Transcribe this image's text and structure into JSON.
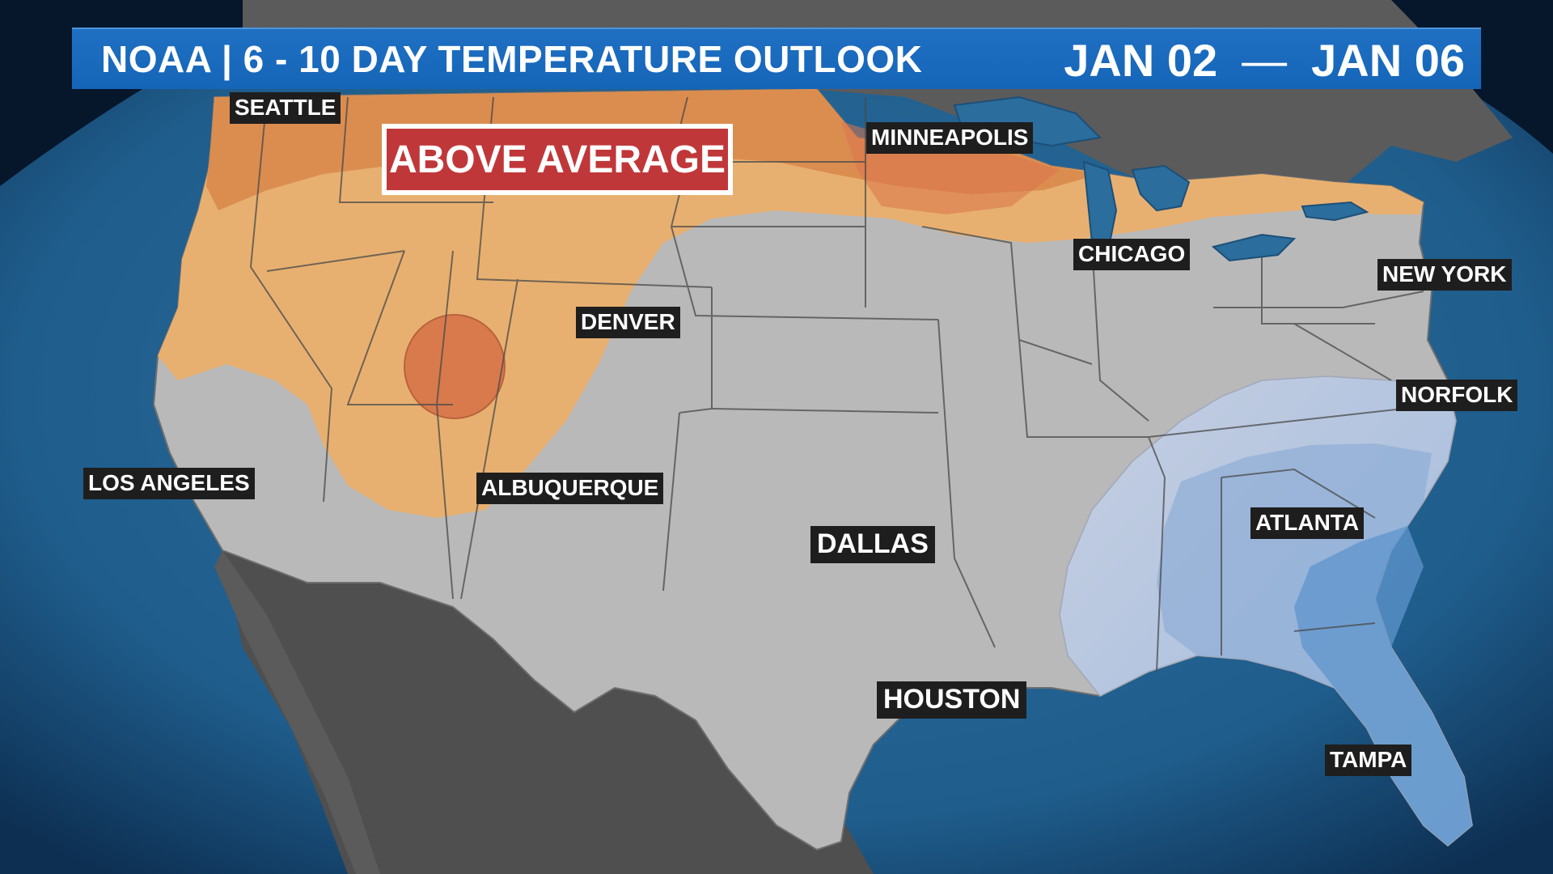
{
  "header": {
    "title": "NOAA | 6 - 10 DAY TEMPERATURE OUTLOOK",
    "date_start": "JAN 02",
    "date_separator": "—",
    "date_end": "JAN 06"
  },
  "legend": {
    "above_label": "ABOVE AVERAGE"
  },
  "cities": {
    "seattle": "SEATTLE",
    "minneapolis": "MINNEAPOLIS",
    "chicago": "CHICAGO",
    "new_york": "NEW YORK",
    "denver": "DENVER",
    "norfolk": "NORFOLK",
    "los_angeles": "LOS ANGELES",
    "albuquerque": "ALBUQUERQUE",
    "atlanta": "ATLANTA",
    "dallas": "DALLAS",
    "houston": "HOUSTON",
    "tampa": "TAMPA"
  },
  "colors": {
    "ocean": "#1f5d8c",
    "land_outside": "#5b5b5b",
    "near_normal": "#b9b9b9",
    "above_light": "#e8b070",
    "above_medium": "#d98a4c",
    "above_strong": "#d8754a",
    "below_light": "#c2cce0",
    "below_medium": "#8eaed6",
    "below_strong": "#5f95cc",
    "header_bg": "#1565b8",
    "badge_red": "#c0373a"
  }
}
